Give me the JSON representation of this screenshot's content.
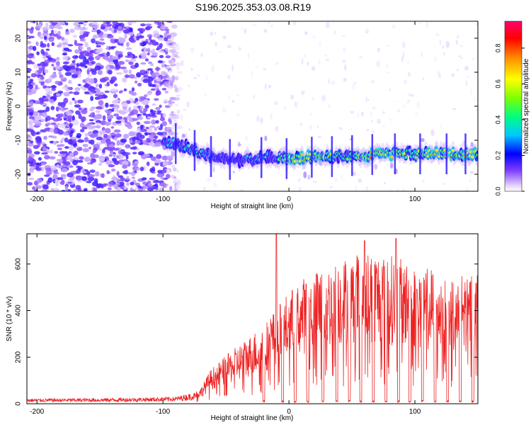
{
  "title": "S196.2025.353.03.08.R19",
  "chart_data": [
    {
      "type": "heatmap",
      "title": "S196.2025.353.03.08.R19",
      "xlabel": "Height of straight line (km)",
      "ylabel": "Frequency (Hz)",
      "xlim": [
        -208,
        150
      ],
      "ylim": [
        -25,
        25
      ],
      "xticks": [
        -200,
        -100,
        0,
        100
      ],
      "yticks": [
        20,
        10,
        0,
        -10,
        -20
      ],
      "xtick_labels": [
        "-200",
        "-100",
        "0",
        "100"
      ],
      "ytick_labels": [
        "20",
        "10",
        "0",
        "-10",
        "-20"
      ],
      "colorbar": {
        "label": "Normalized spectral amplitude",
        "range": [
          0.0,
          0.95
        ],
        "ticks": [
          0.0,
          0.2,
          0.4,
          0.6,
          0.8
        ],
        "tick_labels": [
          "0.0",
          "0.2",
          "0.4",
          "0.6",
          "0.8"
        ]
      },
      "signal_track": {
        "x_km": [
          -100,
          -90,
          -80,
          -70,
          -60,
          -50,
          -40,
          -30,
          -20,
          -10,
          0,
          10,
          20,
          30,
          40,
          50,
          60,
          70,
          80,
          90,
          100,
          110,
          120,
          130,
          140,
          150
        ],
        "freq_hz": [
          -10,
          -11,
          -12,
          -14,
          -15,
          -15.5,
          -16,
          -15.5,
          -15,
          -15,
          -15.5,
          -15,
          -15,
          -15,
          -14.5,
          -14.5,
          -14.5,
          -14,
          -14,
          -14,
          -14,
          -14,
          -14,
          -14,
          -14,
          -14
        ],
        "amplitude": [
          0.3,
          0.3,
          0.35,
          0.35,
          0.3,
          0.25,
          0.25,
          0.3,
          0.3,
          0.35,
          0.55,
          0.75,
          0.5,
          0.6,
          0.45,
          0.45,
          0.6,
          0.75,
          0.6,
          0.55,
          0.5,
          0.75,
          0.55,
          0.7,
          0.65,
          0.6
        ]
      },
      "noise_region_x_km": [
        -208,
        -95
      ],
      "noise_amplitude": 0.1
    },
    {
      "type": "line",
      "title": "",
      "xlabel": "Height of straight line (km)",
      "ylabel": "SNR (10 * v/v)",
      "xlim": [
        -208,
        150
      ],
      "ylim": [
        0,
        730
      ],
      "xticks": [
        -200,
        -100,
        0,
        100
      ],
      "yticks": [
        0,
        200,
        400,
        600
      ],
      "xtick_labels": [
        "-200",
        "-100",
        "0",
        "100"
      ],
      "ytick_labels": [
        "0",
        "200",
        "400",
        "600"
      ],
      "series": [
        {
          "name": "SNR",
          "color": "#ee2222",
          "envelope_x_km": [
            -208,
            -150,
            -110,
            -90,
            -75,
            -70,
            -62,
            -50,
            -40,
            -30,
            -20,
            -10,
            0,
            10,
            20,
            30,
            40,
            50,
            60,
            70,
            80,
            90,
            100,
            110,
            120,
            130,
            140,
            150
          ],
          "envelope_snr": [
            20,
            22,
            25,
            28,
            45,
            60,
            130,
            180,
            220,
            260,
            300,
            360,
            420,
            470,
            490,
            520,
            540,
            560,
            580,
            575,
            560,
            540,
            520,
            510,
            500,
            495,
            490,
            500
          ],
          "spikes": [
            {
              "x_km": -10,
              "snr": 730
            },
            {
              "x_km": 60,
              "snr": 700
            },
            {
              "x_km": 85,
              "snr": 710
            }
          ],
          "dropouts_x_km": [
            -20,
            -5,
            5,
            15,
            27,
            38,
            48,
            57,
            67,
            77,
            87,
            96,
            106,
            116,
            126,
            136,
            146
          ]
        }
      ]
    }
  ]
}
